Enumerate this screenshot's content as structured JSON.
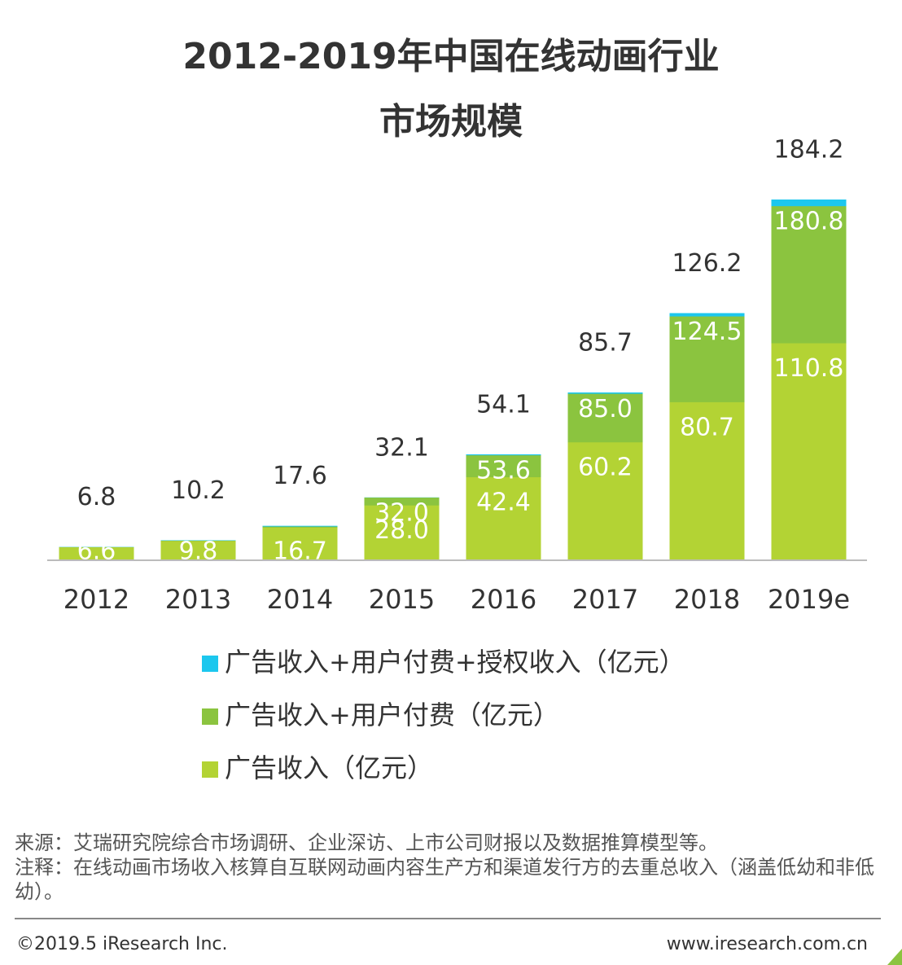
{
  "chart_data": {
    "type": "bar",
    "title": [
      "2012-2019年中国在线动画行业",
      "市场规模"
    ],
    "categories": [
      "2012",
      "2013",
      "2014",
      "2015",
      "2016",
      "2017",
      "2018",
      "2019e"
    ],
    "series": [
      {
        "name": "广告收入+用户付费+授权收入（亿元）",
        "color": "#1cc7ee",
        "values": [
          6.8,
          10.2,
          17.6,
          32.1,
          54.1,
          85.7,
          126.2,
          184.2
        ]
      },
      {
        "name": "广告收入+用户付费（亿元）",
        "color": "#8bc43f",
        "values": [
          6.7,
          10.0,
          17.2,
          32.0,
          53.6,
          85.0,
          124.5,
          180.8
        ],
        "value_labels": [
          null,
          null,
          null,
          "32.0",
          "53.6",
          "85.0",
          "124.5",
          "180.8"
        ]
      },
      {
        "name": "广告收入（亿元）",
        "color": "#b3d334",
        "values": [
          6.6,
          9.8,
          16.7,
          28.0,
          42.4,
          60.2,
          80.7,
          110.8
        ],
        "value_labels": [
          "6.6",
          "9.8",
          "16.7",
          "28.0",
          "42.4",
          "60.2",
          "80.7",
          "110.8"
        ]
      }
    ],
    "ylim": [
      0,
      200
    ],
    "source": "来源：艾瑞研究院综合市场调研、企业深访、上市公司财报以及数据推算模型等。",
    "note": "注释：在线动画市场收入核算自互联网动画内容生产方和渠道发行方的去重总收入（涵盖低幼和非低幼）。",
    "copyright": "©2019.5 iResearch Inc.",
    "website": "www.iresearch.com.cn"
  }
}
